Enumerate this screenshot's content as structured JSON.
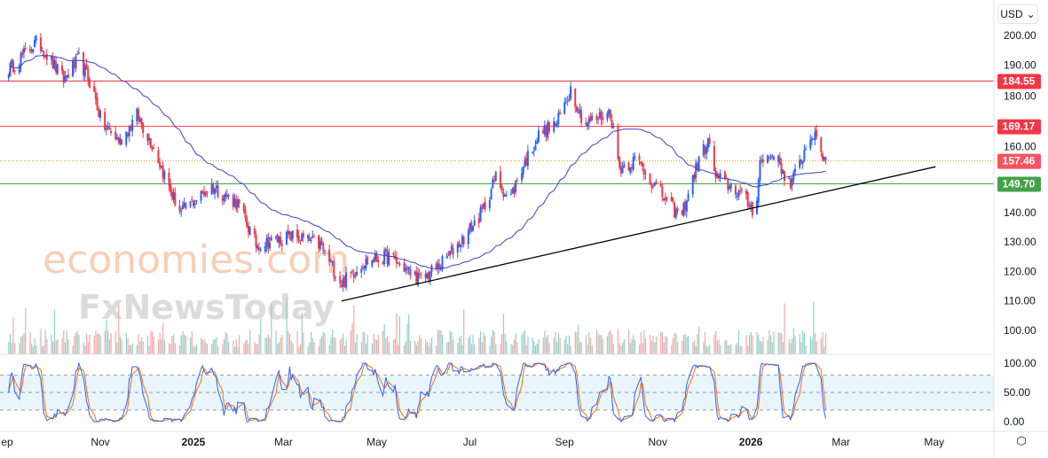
{
  "currency_selector": {
    "label": "USD",
    "icon": "chevron-down-icon"
  },
  "watermark": {
    "line1": "economies.com",
    "line2": "FxNewsToday"
  },
  "colors": {
    "up": "#2962ff",
    "down": "#f23645",
    "ma": "#3f3fc9",
    "resistance": "#f23645",
    "support": "#43a047",
    "last_price": "#f7525f",
    "trendline": "#000000",
    "stoch_k": "#2962ff",
    "stoch_d": "#ff6d00"
  },
  "chart_data": {
    "type": "candlestick",
    "price_axis": {
      "ticks": [
        "200.00",
        "190.00",
        "180.00",
        "160.00",
        "140.00",
        "130.00",
        "120.00",
        "110.00",
        "100.00"
      ],
      "ylim": [
        96,
        212
      ]
    },
    "time_axis": {
      "ticks": [
        {
          "date": "2024-09-01",
          "label": "ep"
        },
        {
          "date": "2024-11-01",
          "label": "Nov"
        },
        {
          "date": "2025-01-01",
          "label": "2025",
          "bold": true
        },
        {
          "date": "2025-03-01",
          "label": "Mar"
        },
        {
          "date": "2025-05-01",
          "label": "May"
        },
        {
          "date": "2025-07-01",
          "label": "Jul"
        },
        {
          "date": "2025-09-01",
          "label": "Sep"
        },
        {
          "date": "2025-11-01",
          "label": "Nov"
        },
        {
          "date": "2026-01-01",
          "label": "2026",
          "bold": true
        },
        {
          "date": "2026-03-01",
          "label": "Mar"
        },
        {
          "date": "2026-05-01",
          "label": "May"
        }
      ]
    },
    "price_path": [
      [
        "2024-09-01",
        188
      ],
      [
        "2024-09-21",
        198
      ],
      [
        "2024-10-08",
        185
      ],
      [
        "2024-10-18",
        192
      ],
      [
        "2024-10-27",
        182
      ],
      [
        "2024-11-02",
        170
      ],
      [
        "2024-11-14",
        164
      ],
      [
        "2024-11-25",
        173
      ],
      [
        "2024-12-06",
        162
      ],
      [
        "2024-12-18",
        146
      ],
      [
        "2024-12-24",
        140
      ],
      [
        "2025-01-13",
        149
      ],
      [
        "2025-01-30",
        143
      ],
      [
        "2025-02-11",
        129
      ],
      [
        "2025-03-08",
        132
      ],
      [
        "2025-03-25",
        129
      ],
      [
        "2025-04-08",
        116
      ],
      [
        "2025-04-22",
        123
      ],
      [
        "2025-05-09",
        125
      ],
      [
        "2025-05-30",
        117
      ],
      [
        "2025-06-13",
        123
      ],
      [
        "2025-06-28",
        132
      ],
      [
        "2025-07-09",
        140
      ],
      [
        "2025-07-18",
        152
      ],
      [
        "2025-07-27",
        144
      ],
      [
        "2025-08-04",
        155
      ],
      [
        "2025-08-16",
        167
      ],
      [
        "2025-08-27",
        170
      ],
      [
        "2025-09-05",
        182
      ],
      [
        "2025-09-14",
        170
      ],
      [
        "2025-10-01",
        174
      ],
      [
        "2025-10-07",
        155
      ],
      [
        "2025-10-18",
        158
      ],
      [
        "2025-11-02",
        147
      ],
      [
        "2025-11-16",
        138
      ],
      [
        "2025-11-28",
        158
      ],
      [
        "2025-12-04",
        164
      ],
      [
        "2025-12-09",
        152
      ],
      [
        "2025-12-24",
        147
      ],
      [
        "2026-01-04",
        140
      ],
      [
        "2026-01-07",
        157
      ],
      [
        "2026-01-16",
        160
      ],
      [
        "2026-01-27",
        149
      ],
      [
        "2026-02-10",
        167
      ],
      [
        "2026-02-19",
        157.46
      ]
    ],
    "moving_average": {
      "period": 50
    },
    "horizontal_levels": [
      {
        "price": 184.55,
        "label": "184.55",
        "type": "resistance"
      },
      {
        "price": 169.17,
        "label": "169.17",
        "type": "resistance"
      },
      {
        "price": 157.46,
        "label": "157.46",
        "type": "last_price"
      },
      {
        "price": 149.7,
        "label": "149.70",
        "type": "support"
      }
    ],
    "trendline": {
      "from": [
        "2025-04-08",
        110
      ],
      "to": [
        "2026-05-02",
        155.5
      ]
    },
    "oscillator": {
      "type": "stochastic-rsi",
      "ticks": [
        "100.00",
        "50.00",
        "0.00"
      ],
      "bands": [
        20,
        80
      ],
      "ylim": [
        0,
        100
      ]
    }
  }
}
